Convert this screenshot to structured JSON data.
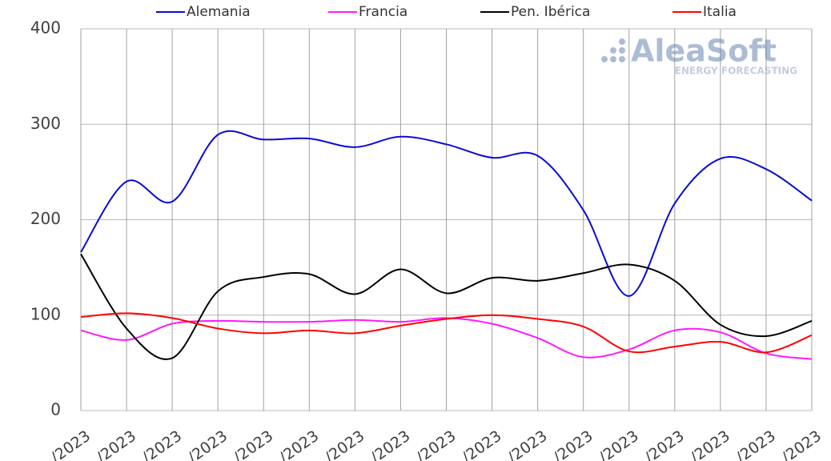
{
  "chart_data": {
    "type": "line",
    "watermark": {
      "name": "AleaSoft",
      "tagline": "ENERGY FORECASTING"
    },
    "categories": [
      "/2023",
      "/2023",
      "/2023",
      "/2023",
      "/2023",
      "/2023",
      "/2023",
      "/2023",
      "/2023",
      "/2023",
      "/2023",
      "/2023",
      "/2023",
      "/2023",
      "/2023",
      "/2023",
      "/2023"
    ],
    "series": [
      {
        "name": "Alemania",
        "color": "#0a0ad6",
        "values": [
          166,
          240,
          219,
          289,
          284,
          285,
          276,
          287,
          279,
          265,
          267,
          210,
          120,
          217,
          264,
          253,
          220
        ]
      },
      {
        "name": "Francia",
        "color": "#ff19ff",
        "values": [
          84,
          74,
          91,
          94,
          93,
          93,
          95,
          93,
          97,
          91,
          76,
          56,
          64,
          84,
          82,
          60,
          54
        ]
      },
      {
        "name": "Pen. Ibérica",
        "color": "#000000",
        "values": [
          164,
          86,
          55,
          125,
          140,
          143,
          122,
          148,
          123,
          139,
          136,
          144,
          153,
          136,
          90,
          78,
          94
        ]
      },
      {
        "name": "Italia",
        "color": "#ff0000",
        "values": [
          98,
          102,
          97,
          86,
          81,
          84,
          81,
          89,
          96,
          100,
          96,
          88,
          62,
          67,
          72,
          61,
          79
        ]
      }
    ],
    "ylim": [
      0,
      400
    ],
    "yticks": [
      0,
      100,
      200,
      300,
      400
    ],
    "grid": true,
    "legend": "top"
  }
}
